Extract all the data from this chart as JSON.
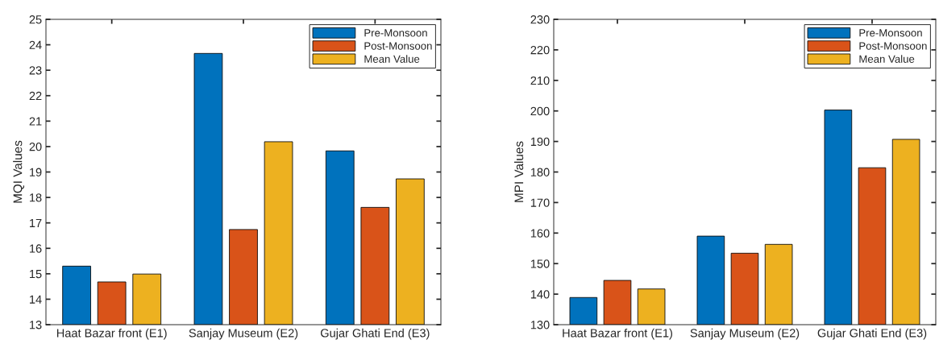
{
  "chart_data": [
    {
      "type": "bar",
      "ylabel": "MQI Values",
      "categories": [
        "Haat Bazar front (E1)",
        "Sanjay Museum (E2)",
        "Gujar Ghati End (E3)"
      ],
      "series": [
        {
          "name": "Pre-Monsoon",
          "color": "#0072bd",
          "values": [
            15.3,
            23.66,
            19.83
          ]
        },
        {
          "name": "Post-Monsoon",
          "color": "#d95319",
          "values": [
            14.68,
            16.74,
            17.61
          ]
        },
        {
          "name": "Mean Value",
          "color": "#edb120",
          "values": [
            14.99,
            20.19,
            18.73
          ]
        }
      ],
      "ylim": [
        13,
        25
      ],
      "yticks": [
        13,
        14,
        15,
        16,
        17,
        18,
        19,
        20,
        21,
        22,
        23,
        24,
        25
      ],
      "legend": "top right"
    },
    {
      "type": "bar",
      "ylabel": "MPI Values",
      "categories": [
        "Haat Bazar front (E1)",
        "Sanjay Museum (E2)",
        "Gujar Ghati End (E3)"
      ],
      "series": [
        {
          "name": "Pre-Monsoon",
          "color": "#0072bd",
          "values": [
            138.9,
            159.0,
            200.3
          ]
        },
        {
          "name": "Post-Monsoon",
          "color": "#d95319",
          "values": [
            144.5,
            153.4,
            181.4
          ]
        },
        {
          "name": "Mean Value",
          "color": "#edb120",
          "values": [
            141.7,
            156.3,
            190.7
          ]
        }
      ],
      "ylim": [
        130,
        230
      ],
      "yticks": [
        130,
        140,
        150,
        160,
        170,
        180,
        190,
        200,
        210,
        220,
        230
      ],
      "legend": "top right"
    }
  ]
}
